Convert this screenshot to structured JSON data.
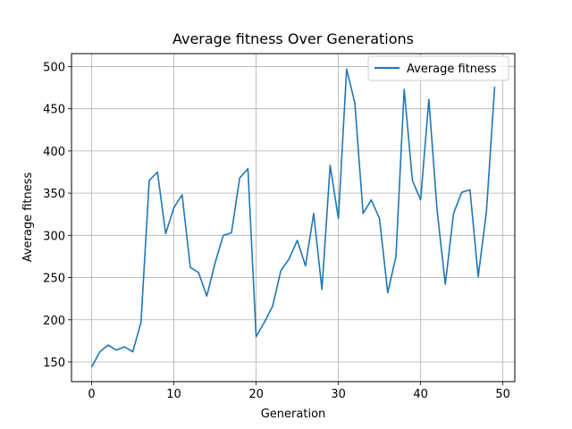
{
  "chart_data": {
    "type": "line",
    "title": "Average fitness Over Generations",
    "xlabel": "Generation",
    "ylabel": "Average fitness",
    "xlim": [
      -2.45,
      51.45
    ],
    "ylim": [
      126.7,
      515.3
    ],
    "xticks": [
      0,
      10,
      20,
      30,
      40,
      50
    ],
    "yticks": [
      150,
      200,
      250,
      300,
      350,
      400,
      450,
      500
    ],
    "grid": true,
    "legend_position": "top-right",
    "series": [
      {
        "name": "Average fitness",
        "color": "#1f77b4",
        "x": [
          0,
          1,
          2,
          3,
          4,
          5,
          6,
          7,
          8,
          9,
          10,
          11,
          12,
          13,
          14,
          15,
          16,
          17,
          18,
          19,
          20,
          21,
          22,
          23,
          24,
          25,
          26,
          27,
          28,
          29,
          30,
          31,
          32,
          33,
          34,
          35,
          36,
          37,
          38,
          39,
          40,
          41,
          42,
          43,
          44,
          45,
          46,
          47,
          48,
          49
        ],
        "values": [
          144,
          162,
          170,
          164,
          168,
          162,
          197,
          365,
          375,
          302,
          333,
          348,
          262,
          256,
          228,
          267,
          300,
          303,
          368,
          379,
          180,
          197,
          216,
          258,
          272,
          294,
          264,
          326,
          236,
          383,
          320,
          497,
          457,
          326,
          342,
          320,
          232,
          275,
          473,
          365,
          342,
          461,
          330,
          242,
          326,
          351,
          354,
          251,
          328,
          476
        ]
      }
    ]
  }
}
